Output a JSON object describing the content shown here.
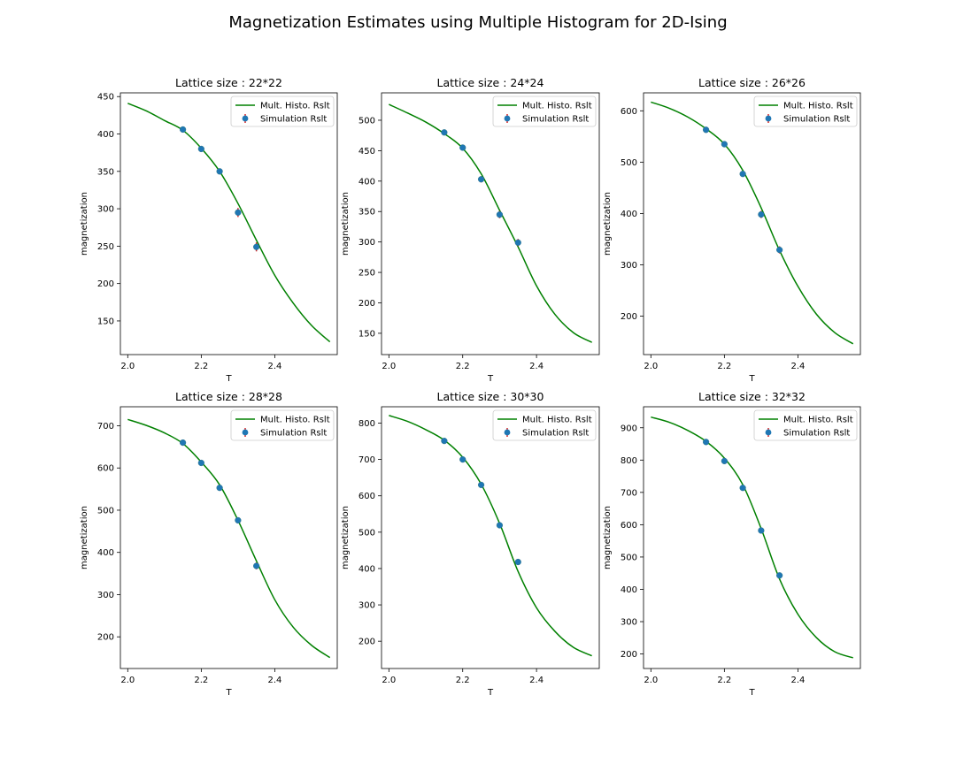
{
  "figure": {
    "title": "Magnetization Estimates using Multiple Histogram for 2D-Ising"
  },
  "chart_data": [
    {
      "type": "line",
      "title": "Lattice size : 22*22",
      "xlabel": "T",
      "ylabel": "magnetization",
      "xlim": [
        1.98,
        2.57
      ],
      "ylim": [
        105,
        455
      ],
      "xticks": [
        2.0,
        2.2,
        2.4
      ],
      "xtick_labels": [
        "2.0",
        "2.2",
        "2.4"
      ],
      "yticks": [
        150,
        200,
        250,
        300,
        350,
        400,
        450
      ],
      "legend_position": "top-right",
      "curve": {
        "name": "Mult. Histo. Rslt",
        "color": "#008000",
        "x": [
          2.0,
          2.05,
          2.1,
          2.15,
          2.2,
          2.25,
          2.3,
          2.35,
          2.4,
          2.45,
          2.5,
          2.55
        ],
        "y": [
          441,
          431,
          418,
          405,
          381,
          350,
          307,
          258,
          211,
          174,
          144,
          122
        ]
      },
      "points": {
        "name": "Simulation Rslt",
        "color": "#1f77b4",
        "errcolor": "#d62728",
        "x": [
          2.15,
          2.2,
          2.25,
          2.3,
          2.35
        ],
        "y": [
          406,
          380,
          350,
          295,
          249
        ],
        "err": [
          3,
          3,
          3,
          6,
          6
        ]
      }
    },
    {
      "type": "line",
      "title": "Lattice size : 24*24",
      "xlabel": "T",
      "ylabel": "magnetization",
      "xlim": [
        1.98,
        2.57
      ],
      "ylim": [
        115,
        545
      ],
      "xticks": [
        2.0,
        2.2,
        2.4
      ],
      "xtick_labels": [
        "2.0",
        "2.2",
        "2.4"
      ],
      "yticks": [
        150,
        200,
        250,
        300,
        350,
        400,
        450,
        500
      ],
      "legend_position": "top-right",
      "curve": {
        "name": "Mult. Histo. Rslt",
        "color": "#008000",
        "x": [
          2.0,
          2.05,
          2.1,
          2.15,
          2.2,
          2.25,
          2.3,
          2.35,
          2.4,
          2.45,
          2.5,
          2.55
        ],
        "y": [
          526,
          512,
          497,
          478,
          454,
          412,
          352,
          292,
          228,
          181,
          151,
          135
        ]
      },
      "points": {
        "name": "Simulation Rslt",
        "color": "#1f77b4",
        "errcolor": "#d62728",
        "x": [
          2.15,
          2.2,
          2.25,
          2.3,
          2.35
        ],
        "y": [
          480,
          455,
          403,
          345,
          299
        ],
        "err": [
          3,
          3,
          5,
          6,
          6
        ]
      }
    },
    {
      "type": "line",
      "title": "Lattice size : 26*26",
      "xlabel": "T",
      "ylabel": "magnetization",
      "xlim": [
        1.98,
        2.57
      ],
      "ylim": [
        125,
        635
      ],
      "xticks": [
        2.0,
        2.2,
        2.4
      ],
      "xtick_labels": [
        "2.0",
        "2.2",
        "2.4"
      ],
      "yticks": [
        200,
        300,
        400,
        500,
        600
      ],
      "legend_position": "top-right",
      "curve": {
        "name": "Mult. Histo. Rslt",
        "color": "#008000",
        "x": [
          2.0,
          2.05,
          2.1,
          2.15,
          2.2,
          2.25,
          2.3,
          2.35,
          2.4,
          2.45,
          2.5,
          2.55
        ],
        "y": [
          617,
          605,
          588,
          565,
          535,
          484,
          411,
          328,
          258,
          204,
          168,
          146
        ]
      },
      "points": {
        "name": "Simulation Rslt",
        "color": "#1f77b4",
        "errcolor": "#d62728",
        "x": [
          2.15,
          2.2,
          2.25,
          2.3,
          2.35
        ],
        "y": [
          563,
          535,
          477,
          398,
          329
        ],
        "err": [
          3,
          4,
          5,
          7,
          7
        ]
      }
    },
    {
      "type": "line",
      "title": "Lattice size : 28*28",
      "xlabel": "T",
      "ylabel": "magnetization",
      "xlim": [
        1.98,
        2.57
      ],
      "ylim": [
        125,
        745
      ],
      "xticks": [
        2.0,
        2.2,
        2.4
      ],
      "xtick_labels": [
        "2.0",
        "2.2",
        "2.4"
      ],
      "yticks": [
        200,
        300,
        400,
        500,
        600,
        700
      ],
      "legend_position": "top-right",
      "curve": {
        "name": "Mult. Histo. Rslt",
        "color": "#008000",
        "x": [
          2.0,
          2.05,
          2.1,
          2.15,
          2.2,
          2.25,
          2.3,
          2.35,
          2.4,
          2.45,
          2.5,
          2.55
        ],
        "y": [
          715,
          701,
          683,
          658,
          614,
          560,
          476,
          380,
          288,
          223,
          180,
          151
        ]
      },
      "points": {
        "name": "Simulation Rslt",
        "color": "#1f77b4",
        "errcolor": "#d62728",
        "x": [
          2.15,
          2.2,
          2.25,
          2.3,
          2.35
        ],
        "y": [
          660,
          612,
          553,
          476,
          368
        ],
        "err": [
          4,
          4,
          6,
          6,
          8
        ]
      }
    },
    {
      "type": "line",
      "title": "Lattice size : 30*30",
      "xlabel": "T",
      "ylabel": "magnetization",
      "xlim": [
        1.98,
        2.57
      ],
      "ylim": [
        125,
        845
      ],
      "xticks": [
        2.0,
        2.2,
        2.4
      ],
      "xtick_labels": [
        "2.0",
        "2.2",
        "2.4"
      ],
      "yticks": [
        200,
        300,
        400,
        500,
        600,
        700,
        800
      ],
      "legend_position": "top-right",
      "curve": {
        "name": "Mult. Histo. Rslt",
        "color": "#008000",
        "x": [
          2.0,
          2.05,
          2.1,
          2.15,
          2.2,
          2.25,
          2.3,
          2.35,
          2.4,
          2.45,
          2.5,
          2.55
        ],
        "y": [
          821,
          805,
          782,
          753,
          706,
          632,
          524,
          392,
          292,
          227,
          183,
          160
        ]
      },
      "points": {
        "name": "Simulation Rslt",
        "color": "#1f77b4",
        "errcolor": "#d62728",
        "x": [
          2.15,
          2.2,
          2.25,
          2.3,
          2.35
        ],
        "y": [
          751,
          700,
          630,
          519,
          418
        ],
        "err": [
          4,
          5,
          6,
          6,
          8
        ]
      }
    },
    {
      "type": "line",
      "title": "Lattice size : 32*32",
      "xlabel": "T",
      "ylabel": "magnetization",
      "xlim": [
        1.98,
        2.57
      ],
      "ylim": [
        155,
        965
      ],
      "xticks": [
        2.0,
        2.2,
        2.4
      ],
      "xtick_labels": [
        "2.0",
        "2.2",
        "2.4"
      ],
      "yticks": [
        200,
        300,
        400,
        500,
        600,
        700,
        800,
        900
      ],
      "legend_position": "top-right",
      "curve": {
        "name": "Mult. Histo. Rslt",
        "color": "#008000",
        "x": [
          2.0,
          2.05,
          2.1,
          2.15,
          2.2,
          2.25,
          2.3,
          2.35,
          2.4,
          2.45,
          2.5,
          2.55
        ],
        "y": [
          933,
          917,
          892,
          858,
          806,
          724,
          588,
          432,
          323,
          251,
          207,
          188
        ]
      },
      "points": {
        "name": "Simulation Rslt",
        "color": "#1f77b4",
        "errcolor": "#d62728",
        "x": [
          2.15,
          2.2,
          2.25,
          2.3,
          2.35
        ],
        "y": [
          856,
          797,
          714,
          582,
          443
        ],
        "err": [
          5,
          6,
          7,
          7,
          8
        ]
      }
    }
  ]
}
